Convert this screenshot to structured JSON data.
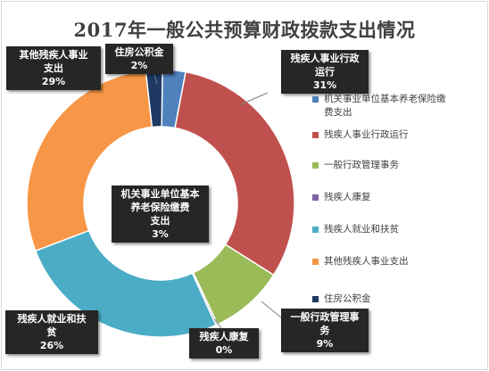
{
  "chart_data": {
    "type": "donut",
    "title": "2017年一般公共预算财政拨款支出情况",
    "slices": [
      {
        "name": "机关事业单位基本养老保险缴费支出",
        "value": 3,
        "color": "#4f81bd",
        "label_lines": [
          "机关事业单位基本",
          "养老保险缴费",
          "支出",
          "3%"
        ]
      },
      {
        "name": "残疾人事业行政运行",
        "value": 31,
        "color": "#c0504d",
        "label_lines": [
          "残疾人事业行政",
          "运行",
          "31%"
        ]
      },
      {
        "name": "一般行政管理事务",
        "value": 9,
        "color": "#9bbb59",
        "label_lines": [
          "一般行政管理事",
          "务",
          "9%"
        ]
      },
      {
        "name": "残疾人康复",
        "value": 0,
        "color": "#8064a2",
        "label_lines": [
          "残疾人康复",
          "0%"
        ]
      },
      {
        "name": "残疾人就业和扶贫",
        "value": 26,
        "color": "#4bacc6",
        "label_lines": [
          "残疾人就业和扶",
          "贫",
          "26%"
        ]
      },
      {
        "name": "其他残疾人事业支出",
        "value": 29,
        "color": "#f79646",
        "label_lines": [
          "其他残疾人事业",
          "支出",
          "29%"
        ]
      },
      {
        "name": "住房公积金",
        "value": 2,
        "color": "#1f3864",
        "label_lines": [
          "住房公积金",
          "2%"
        ]
      }
    ],
    "legend": {
      "position": "right",
      "items": [
        {
          "lines": [
            "机关事业单位基本养老保险缴",
            "费支出"
          ],
          "color": "#4f81bd"
        },
        {
          "lines": [
            "残疾人事业行政运行"
          ],
          "color": "#c0504d"
        },
        {
          "lines": [
            "一般行政管理事务"
          ],
          "color": "#9bbb59"
        },
        {
          "lines": [
            "残疾人康复"
          ],
          "color": "#8064a2"
        },
        {
          "lines": [
            "残疾人就业和扶贫"
          ],
          "color": "#4bacc6"
        },
        {
          "lines": [
            "其他残疾人事业支出"
          ],
          "color": "#f79646"
        },
        {
          "lines": [
            "住房公积金"
          ],
          "color": "#1f3864"
        }
      ]
    }
  }
}
